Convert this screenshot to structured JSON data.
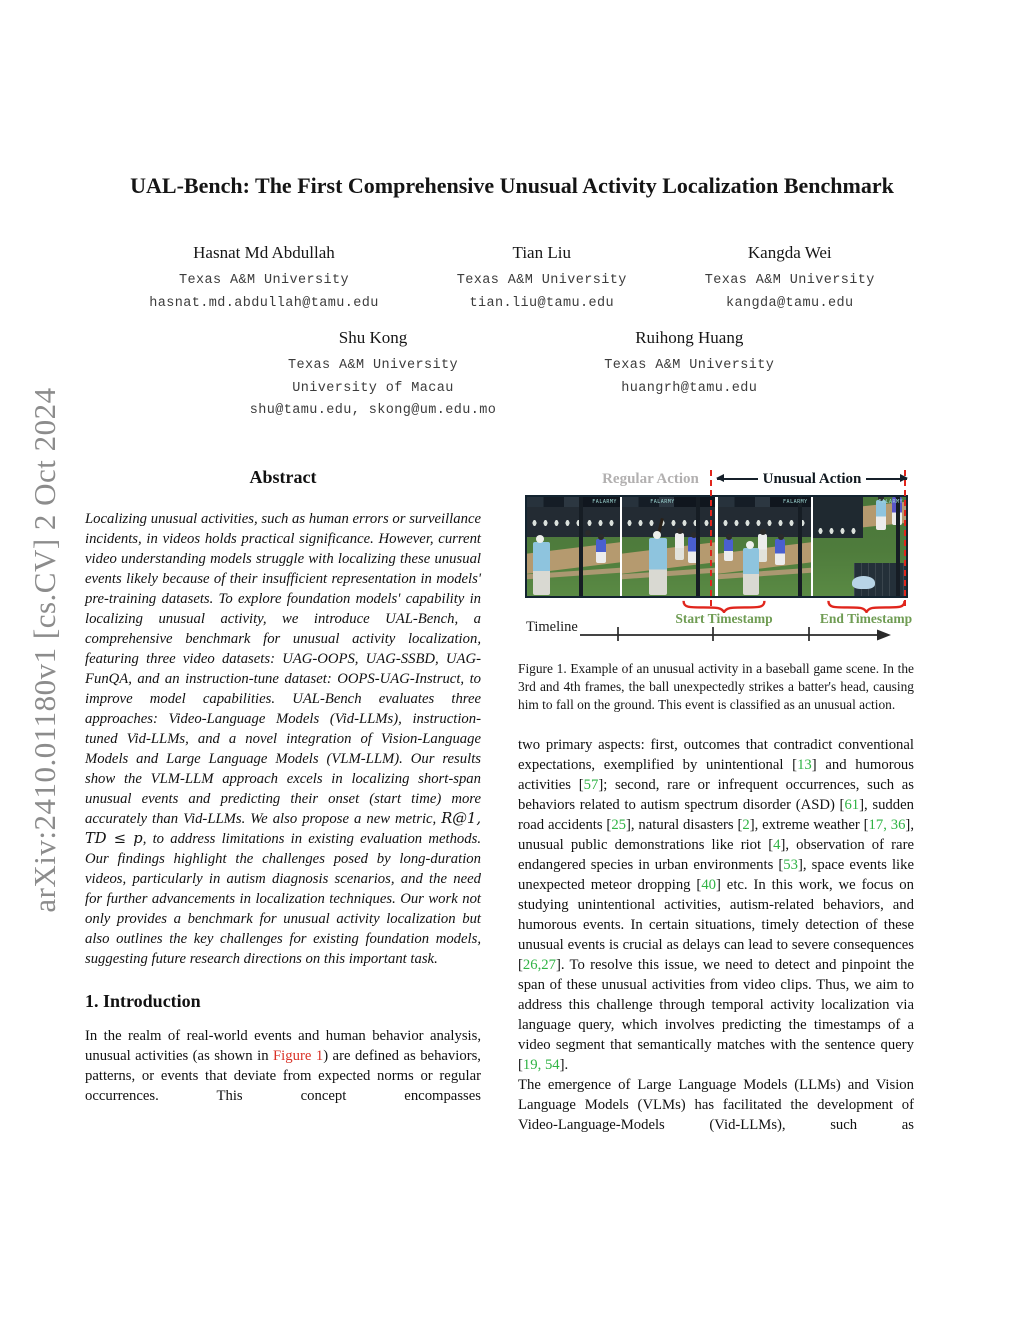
{
  "arxiv_watermark": "arXiv:2410.01180v1  [cs.CV]  2 Oct 2024",
  "title": "UAL-Bench: The First Comprehensive Unusual Activity Localization Benchmark",
  "authors": {
    "row1": [
      {
        "name": "Hasnat Md Abdullah",
        "affil1": "Texas A&M University",
        "email": "hasnat.md.abdullah@tamu.edu"
      },
      {
        "name": "Tian Liu",
        "affil1": "Texas A&M University",
        "email": "tian.liu@tamu.edu"
      },
      {
        "name": "Kangda Wei",
        "affil1": "Texas A&M University",
        "email": "kangda@tamu.edu"
      }
    ],
    "row2": [
      {
        "name": "Shu Kong",
        "affil1": "Texas A&M University",
        "affil2": "University of Macau",
        "email": "shu@tamu.edu, skong@um.edu.mo"
      },
      {
        "name": "Ruihong Huang",
        "affil1": "Texas A&M University",
        "email": "huangrh@tamu.edu"
      }
    ]
  },
  "abstract": {
    "heading": "Abstract",
    "segments": [
      {
        "t": "Localizing unusual activities, such as human errors or surveillance incidents, in videos holds practical significance. However, current video understanding models struggle with localizing these unusual events likely because of their insufficient representation in models' pre-training datasets. To explore foundation models' capability in localizing unusual activity, we introduce UAL-Bench, a comprehensive benchmark for unusual activity localization, featuring three video datasets: UAG-OOPS, UAG-SSBD, UAG-FunQA, and an instruction-tune dataset: OOPS-UAG-Instruct, to improve model capabilities. UAL-Bench evaluates three approaches: Video-Language Models (Vid-LLMs), instruction-tuned Vid-LLMs, and a novel integration of Vision-Language Models and Large Language Models (VLM-LLM). Our results show the VLM-LLM approach excels in localizing short-span unusual events and predicting their onset (start time) more accurately than Vid-LLMs. We also propose a new metric, "
      },
      {
        "t": "R@1, TD ≤ p",
        "c": "math"
      },
      {
        "t": ", to address limitations in existing evaluation methods. Our findings highlight the challenges posed by long-duration videos, particularly in autism diagnosis scenarios, and the need for further advancements in localization techniques. Our work not only provides a benchmark for unusual activity localization but also outlines the key challenges for existing foundation models, suggesting future research directions on this important task."
      }
    ]
  },
  "intro": {
    "heading": "1. Introduction",
    "p1": [
      {
        "t": "In the realm of real-world events and human behavior analysis, unusual activities (as shown in "
      },
      {
        "t": "Figure 1",
        "c": "figref"
      },
      {
        "t": ") are defined as behaviors, patterns, or events that deviate from expected norms or regular occurrences. This concept encompasses"
      }
    ]
  },
  "right_column": {
    "p1": [
      {
        "t": "two primary aspects: first, outcomes that contradict conventional expectations, exemplified by unintentional ["
      },
      {
        "t": "13",
        "c": "cite"
      },
      {
        "t": "] and humorous activities ["
      },
      {
        "t": "57",
        "c": "cite"
      },
      {
        "t": "]; second, rare or infrequent occurrences, such as behaviors related to autism spectrum disorder (ASD) ["
      },
      {
        "t": "61",
        "c": "cite"
      },
      {
        "t": "], sudden road accidents ["
      },
      {
        "t": "25",
        "c": "cite"
      },
      {
        "t": "], natural disasters ["
      },
      {
        "t": "2",
        "c": "cite"
      },
      {
        "t": "], extreme weather ["
      },
      {
        "t": "17, 36",
        "c": "cite"
      },
      {
        "t": "], unusual public demonstrations like riot ["
      },
      {
        "t": "4",
        "c": "cite"
      },
      {
        "t": "], observation of rare endangered species in urban environments ["
      },
      {
        "t": "53",
        "c": "cite"
      },
      {
        "t": "], space events like unexpected meteor dropping ["
      },
      {
        "t": "40",
        "c": "cite"
      },
      {
        "t": "] etc. In this work, we focus on studying unintentional activities, autism-related behaviors, and humorous events. In certain situations, timely detection of these unusual events is crucial as delays can lead to severe consequences ["
      },
      {
        "t": "26,27",
        "c": "cite"
      },
      {
        "t": "]. To resolve this issue, we need to detect and pinpoint the span of these unusual activities from video clips. Thus, we aim to address this challenge through temporal activity localization via language query, which involves predicting the timestamps of a video segment that semantically matches with the sentence query ["
      },
      {
        "t": "19, 54",
        "c": "cite"
      },
      {
        "t": "]."
      }
    ],
    "p2": [
      {
        "t": "The emergence of Large Language Models (LLMs) and Vision Language Models (VLMs) has facilitated the development of Video-Language-Models (Vid-LLMs), such as"
      }
    ]
  },
  "figure1": {
    "regular_label": "Regular Action",
    "unusual_label": "Unusual Action",
    "start_label": "Start Timestamp",
    "end_label": "End Timestamp",
    "timeline_label": "Timeline",
    "banner": "FALARMY",
    "caption": "Figure 1. Example of an unusual activity in a baseball game scene. In the 3rd and 4th frames, the ball unexpectedly strikes a batter's head, causing him to fall on the ground. This event is classified as an unusual action."
  },
  "colors": {
    "citation_green": "#2fb344",
    "figure_ref_red": "#d93025",
    "timestamp_green": "#6f9c53",
    "annotation_red": "#e0251c",
    "watermark_gray": "#8c8c8c"
  }
}
